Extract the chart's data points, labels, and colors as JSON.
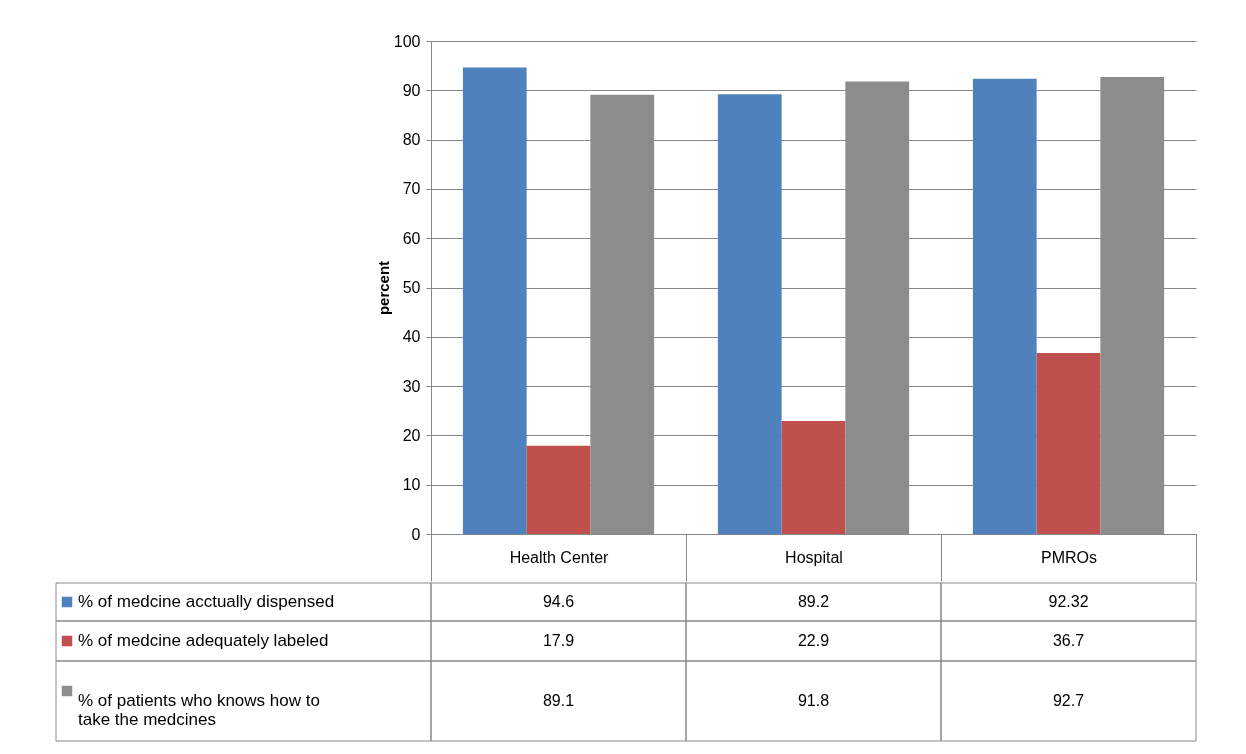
{
  "chart_data": {
    "type": "bar",
    "ylabel": "percent",
    "categories": [
      "Health Center",
      "Hospital",
      "PMROs"
    ],
    "series": [
      {
        "name": "% of medcine acctually dispensed",
        "color": "#4f81bd",
        "values": [
          94.6,
          89.2,
          92.32
        ]
      },
      {
        "name": "%  of medcine adequately labeled",
        "color": "#c0504d",
        "values": [
          17.9,
          22.9,
          36.7
        ]
      },
      {
        "name": "% of patients who knows how to take the medcines",
        "color": "#8c8c8c",
        "values": [
          89.1,
          91.8,
          92.7
        ]
      }
    ],
    "ylim": [
      0,
      100
    ],
    "yticks": [
      0,
      10,
      20,
      30,
      40,
      50,
      60,
      70,
      80,
      90,
      100
    ],
    "grid": "y",
    "legend": "bottom left",
    "data_labels": true
  }
}
